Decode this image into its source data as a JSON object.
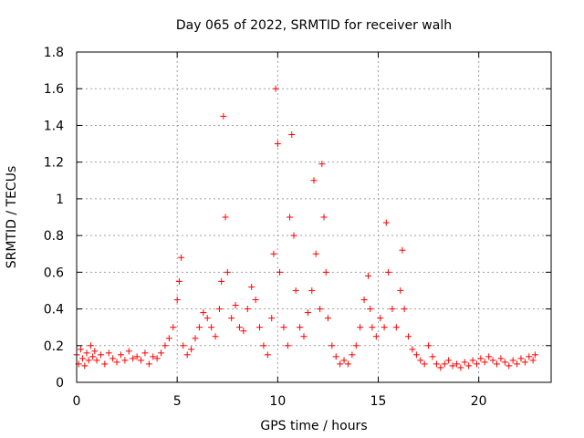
{
  "chart_data": {
    "type": "scatter",
    "title": "Day 065 of 2022, SRMTID for receiver walh",
    "xlabel": "GPS time / hours",
    "ylabel": "SRMTID / TECUs",
    "xlim": [
      0,
      23.6
    ],
    "ylim": [
      0,
      1.8
    ],
    "xticks": [
      0,
      5,
      10,
      15,
      20
    ],
    "xtick_labels": [
      "0",
      "5",
      "10",
      "15",
      "20"
    ],
    "yticks": [
      0,
      0.2,
      0.4,
      0.6,
      0.8,
      1,
      1.2,
      1.4,
      1.6,
      1.8
    ],
    "ytick_labels": [
      "0",
      "0.2",
      "0.4",
      "0.6",
      "0.8",
      "1",
      "1.2",
      "1.4",
      "1.6",
      "1.8"
    ],
    "grid": true,
    "marker": "+",
    "marker_color": "#ff0000",
    "series": [
      {
        "name": "SRMTID",
        "x": [
          0.0,
          0.1,
          0.2,
          0.3,
          0.4,
          0.5,
          0.6,
          0.7,
          0.8,
          0.9,
          1.0,
          1.2,
          1.4,
          1.6,
          1.8,
          2.0,
          2.2,
          2.4,
          2.6,
          2.8,
          3.0,
          3.2,
          3.4,
          3.6,
          3.8,
          4.0,
          4.2,
          4.4,
          4.6,
          4.8,
          5.0,
          5.1,
          5.2,
          5.3,
          5.5,
          5.7,
          5.9,
          6.1,
          6.3,
          6.5,
          6.7,
          6.9,
          7.1,
          7.2,
          7.3,
          7.4,
          7.5,
          7.7,
          7.9,
          8.1,
          8.3,
          8.5,
          8.7,
          8.9,
          9.1,
          9.3,
          9.5,
          9.7,
          9.8,
          9.9,
          10.0,
          10.1,
          10.3,
          10.5,
          10.6,
          10.7,
          10.8,
          10.9,
          11.1,
          11.3,
          11.5,
          11.7,
          11.8,
          11.9,
          12.1,
          12.2,
          12.3,
          12.4,
          12.5,
          12.7,
          12.9,
          13.1,
          13.3,
          13.5,
          13.7,
          13.9,
          14.1,
          14.3,
          14.5,
          14.6,
          14.7,
          14.9,
          15.1,
          15.3,
          15.4,
          15.5,
          15.7,
          15.9,
          16.1,
          16.2,
          16.3,
          16.5,
          16.7,
          16.9,
          17.1,
          17.3,
          17.5,
          17.7,
          17.9,
          18.1,
          18.3,
          18.5,
          18.7,
          18.9,
          19.1,
          19.3,
          19.5,
          19.7,
          19.9,
          20.1,
          20.3,
          20.5,
          20.7,
          20.9,
          21.1,
          21.3,
          21.5,
          21.7,
          21.9,
          22.1,
          22.3,
          22.5,
          22.7,
          22.8
        ],
        "y": [
          0.15,
          0.1,
          0.18,
          0.13,
          0.09,
          0.16,
          0.12,
          0.2,
          0.14,
          0.17,
          0.12,
          0.15,
          0.1,
          0.16,
          0.13,
          0.11,
          0.15,
          0.12,
          0.17,
          0.13,
          0.14,
          0.12,
          0.16,
          0.1,
          0.14,
          0.13,
          0.16,
          0.2,
          0.24,
          0.3,
          0.45,
          0.55,
          0.68,
          0.2,
          0.15,
          0.18,
          0.24,
          0.3,
          0.38,
          0.35,
          0.3,
          0.25,
          0.4,
          0.55,
          1.45,
          0.9,
          0.6,
          0.35,
          0.42,
          0.3,
          0.28,
          0.4,
          0.52,
          0.45,
          0.3,
          0.2,
          0.15,
          0.35,
          0.7,
          1.6,
          1.3,
          0.6,
          0.3,
          0.2,
          0.9,
          1.35,
          0.8,
          0.5,
          0.3,
          0.25,
          0.38,
          0.5,
          1.1,
          0.7,
          0.4,
          1.19,
          0.9,
          0.6,
          0.35,
          0.2,
          0.14,
          0.1,
          0.12,
          0.1,
          0.15,
          0.2,
          0.3,
          0.45,
          0.58,
          0.4,
          0.3,
          0.25,
          0.35,
          0.3,
          0.87,
          0.6,
          0.4,
          0.3,
          0.5,
          0.72,
          0.4,
          0.25,
          0.18,
          0.15,
          0.12,
          0.1,
          0.2,
          0.14,
          0.1,
          0.08,
          0.1,
          0.12,
          0.09,
          0.1,
          0.08,
          0.11,
          0.09,
          0.12,
          0.1,
          0.13,
          0.11,
          0.14,
          0.12,
          0.1,
          0.13,
          0.11,
          0.09,
          0.12,
          0.1,
          0.13,
          0.11,
          0.14,
          0.12,
          0.15
        ]
      }
    ]
  }
}
